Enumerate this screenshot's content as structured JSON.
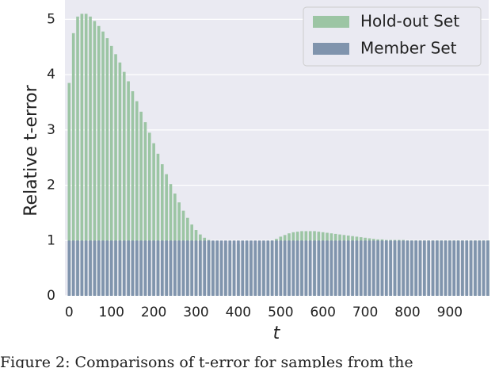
{
  "chart_data": {
    "type": "bar",
    "ylabel": "Relative t-error",
    "xlabel": "t",
    "caption": "Figure 2: Comparisons of t-error for samples from the",
    "x": [
      0,
      10,
      20,
      30,
      40,
      50,
      60,
      70,
      80,
      90,
      100,
      110,
      120,
      130,
      140,
      150,
      160,
      170,
      180,
      190,
      200,
      210,
      220,
      230,
      240,
      250,
      260,
      270,
      280,
      290,
      300,
      310,
      320,
      330,
      340,
      350,
      360,
      370,
      380,
      390,
      400,
      410,
      420,
      430,
      440,
      450,
      460,
      470,
      480,
      490,
      500,
      510,
      520,
      530,
      540,
      550,
      560,
      570,
      580,
      590,
      600,
      610,
      620,
      630,
      640,
      650,
      660,
      670,
      680,
      690,
      700,
      710,
      720,
      730,
      740,
      750,
      760,
      770,
      780,
      790,
      800,
      810,
      820,
      830,
      840,
      850,
      860,
      870,
      880,
      890,
      900,
      910,
      920,
      930,
      940,
      950,
      960,
      970,
      980,
      990
    ],
    "series": [
      {
        "name": "Hold-out Set",
        "color": "#9cc5a4",
        "values": [
          3.85,
          4.75,
          5.05,
          5.1,
          5.1,
          5.05,
          4.97,
          4.88,
          4.78,
          4.66,
          4.52,
          4.37,
          4.22,
          4.05,
          3.88,
          3.7,
          3.52,
          3.33,
          3.14,
          2.95,
          2.76,
          2.57,
          2.38,
          2.2,
          2.02,
          1.85,
          1.69,
          1.54,
          1.41,
          1.29,
          1.19,
          1.11,
          1.05,
          1.01,
          0.98,
          0.96,
          0.95,
          0.94,
          0.93,
          0.93,
          0.93,
          0.93,
          0.93,
          0.93,
          0.94,
          0.95,
          0.96,
          0.98,
          1.0,
          1.03,
          1.07,
          1.1,
          1.13,
          1.15,
          1.16,
          1.17,
          1.17,
          1.17,
          1.17,
          1.16,
          1.15,
          1.14,
          1.13,
          1.12,
          1.11,
          1.1,
          1.09,
          1.08,
          1.07,
          1.06,
          1.05,
          1.04,
          1.03,
          1.02,
          1.02,
          1.01,
          1.01,
          1.01,
          1.01,
          1.01,
          1.0,
          1.0,
          1.0,
          1.0,
          1.0,
          1.0,
          1.0,
          1.0,
          1.0,
          1.0,
          1.0,
          1.0,
          1.0,
          1.0,
          1.0,
          1.0,
          1.0,
          1.0,
          1.0,
          1.0
        ]
      },
      {
        "name": "Member Set",
        "color": "#8094ad",
        "values": [
          1,
          1,
          1,
          1,
          1,
          1,
          1,
          1,
          1,
          1,
          1,
          1,
          1,
          1,
          1,
          1,
          1,
          1,
          1,
          1,
          1,
          1,
          1,
          1,
          1,
          1,
          1,
          1,
          1,
          1,
          1,
          1,
          1,
          1,
          1,
          1,
          1,
          1,
          1,
          1,
          1,
          1,
          1,
          1,
          1,
          1,
          1,
          1,
          1,
          1,
          1,
          1,
          1,
          1,
          1,
          1,
          1,
          1,
          1,
          1,
          1,
          1,
          1,
          1,
          1,
          1,
          1,
          1,
          1,
          1,
          1,
          1,
          1,
          1,
          1,
          1,
          1,
          1,
          1,
          1,
          1,
          1,
          1,
          1,
          1,
          1,
          1,
          1,
          1,
          1,
          1,
          1,
          1,
          1,
          1,
          1,
          1,
          1,
          1,
          1
        ]
      }
    ],
    "xlim": [
      -10,
      992
    ],
    "ylim": [
      0,
      5.35
    ],
    "xticks": [
      0,
      100,
      200,
      300,
      400,
      500,
      600,
      700,
      800,
      900
    ],
    "yticks": [
      0,
      1,
      2,
      3,
      4,
      5
    ],
    "grid": true,
    "legend": "upper right"
  }
}
